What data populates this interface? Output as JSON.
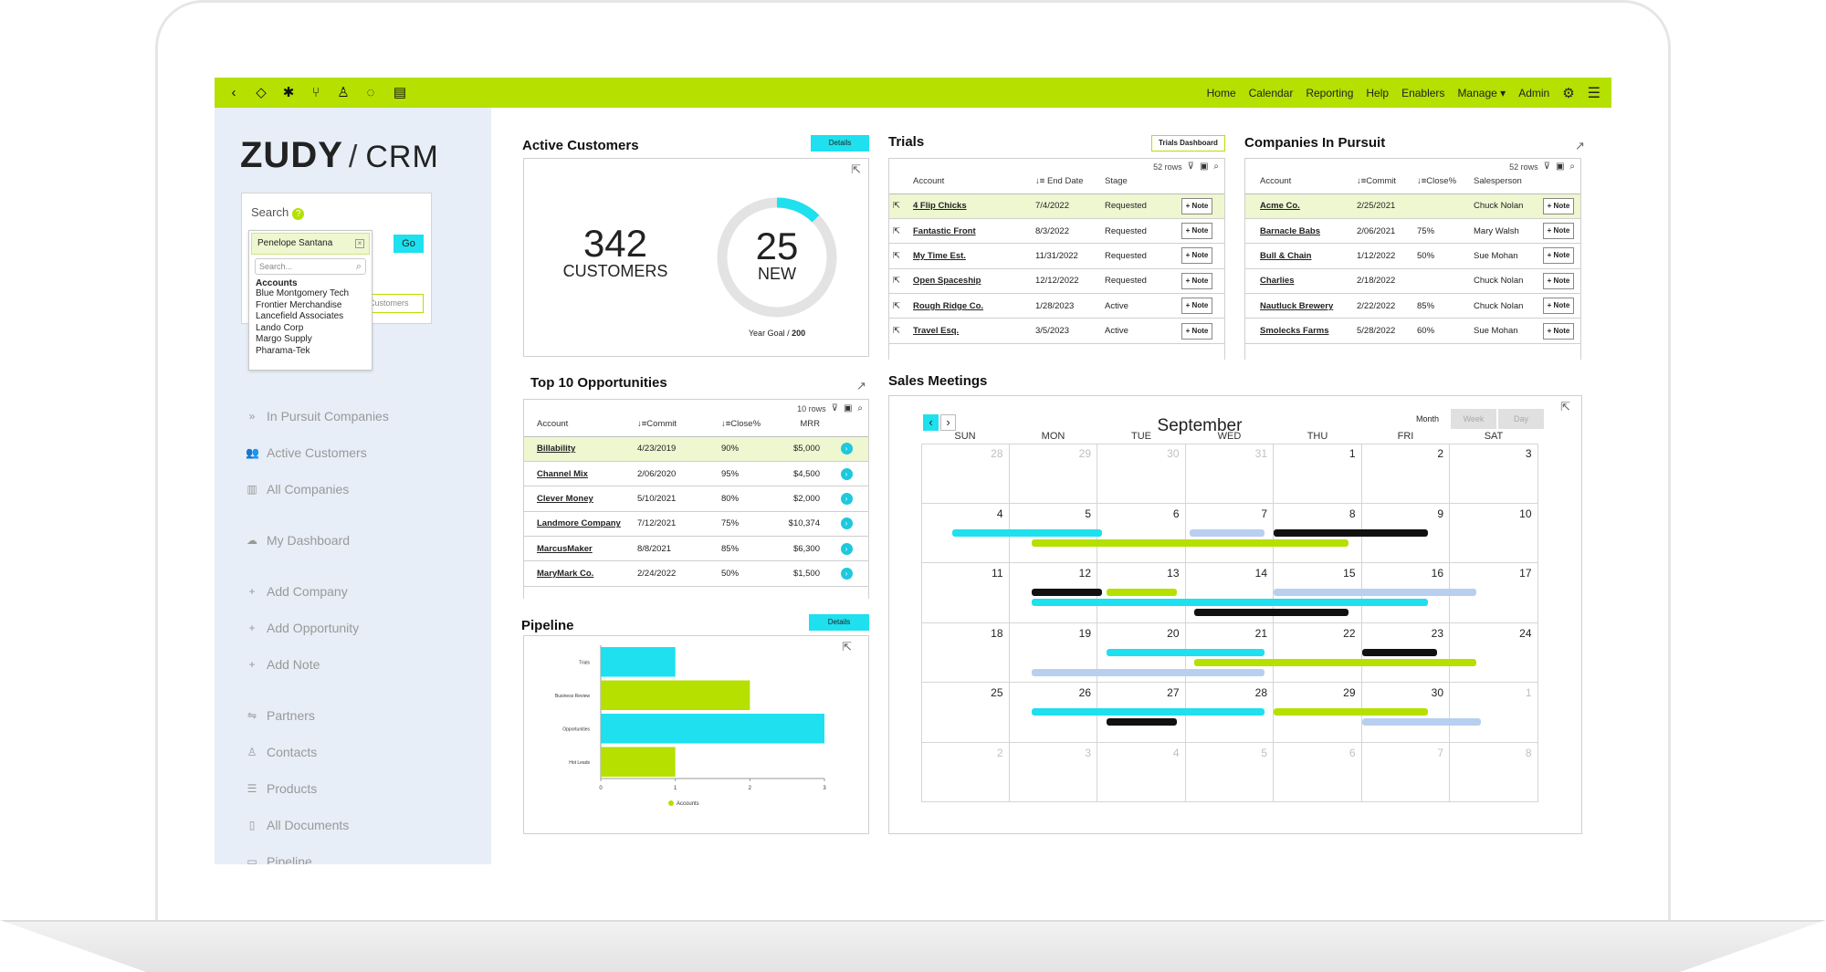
{
  "nav": {
    "items": [
      "Home",
      "Calendar",
      "Reporting",
      "Help",
      "Enablers",
      "Manage",
      "Admin"
    ],
    "left_icons": [
      "back-icon",
      "shield-icon",
      "bug-icon",
      "branch-icon",
      "user-icon",
      "spinner-icon",
      "flag-icon"
    ]
  },
  "logo": {
    "brand": "ZUDY",
    "product": "CRM"
  },
  "search": {
    "label": "Search",
    "go": "Go",
    "customers_placeholder": "Customers",
    "selected": "Penelope Santana",
    "dropdown_placeholder": "Search...",
    "group": "Accounts",
    "results": [
      "Blue Montgomery Tech",
      "Frontier Merchandise",
      "Lancefield Associates",
      "Lando Corp",
      "Margo Supply",
      "Pharama-Tek"
    ]
  },
  "sidebar": {
    "items": [
      {
        "label": "In Pursuit Companies",
        "icon": "double-chevron-icon"
      },
      {
        "label": "Active Customers",
        "icon": "users-icon"
      },
      {
        "label": "All Companies",
        "icon": "building-icon"
      },
      {
        "label": "My Dashboard",
        "icon": "dashboard-icon"
      },
      {
        "label": "Add Company",
        "icon": "plus-icon"
      },
      {
        "label": "Add Opportunity",
        "icon": "plus-icon"
      },
      {
        "label": "Add Note",
        "icon": "plus-icon"
      },
      {
        "label": "Partners",
        "icon": "handshake-icon"
      },
      {
        "label": "Contacts",
        "icon": "contact-icon"
      },
      {
        "label": "Products",
        "icon": "list-icon"
      },
      {
        "label": "All Documents",
        "icon": "document-icon"
      },
      {
        "label": "Pipeline",
        "icon": "pipeline-icon"
      }
    ]
  },
  "active_customers": {
    "title": "Active Customers",
    "details": "Details",
    "count": "342",
    "count_label": "CUSTOMERS",
    "new": "25",
    "new_label": "NEW",
    "goal_label": "Year Goal /",
    "goal_value": "200",
    "progress": 0.125
  },
  "trials": {
    "title": "Trials",
    "dashboard_btn": "Trials Dashboard",
    "rows_info": "52 rows",
    "columns": [
      "Account",
      "End Date",
      "Stage"
    ],
    "note": "+ Note",
    "rows": [
      [
        "4 Flip Chicks",
        "7/4/2022",
        "Requested"
      ],
      [
        "Fantastic Front",
        "8/3/2022",
        "Requested"
      ],
      [
        "My Time Est.",
        "11/31/2022",
        "Requested"
      ],
      [
        "Open Spaceship",
        "12/12/2022",
        "Requested"
      ],
      [
        "Rough Ridge Co.",
        "1/28/2023",
        "Active"
      ],
      [
        "Travel Esq.",
        "3/5/2023",
        "Active"
      ]
    ]
  },
  "pursuit": {
    "title": "Companies In Pursuit",
    "rows_info": "52 rows",
    "columns": [
      "Account",
      "Commit",
      "Close%",
      "Salesperson"
    ],
    "note": "+ Note",
    "rows": [
      [
        "Acme Co.",
        "2/25/2021",
        "",
        "Chuck Nolan"
      ],
      [
        "Barnacle Babs",
        "2/06/2021",
        "75%",
        "Mary Walsh"
      ],
      [
        "Bull & Chain",
        "1/12/2022",
        "50%",
        "Sue Mohan"
      ],
      [
        "Charlies",
        "2/18/2022",
        "",
        "Chuck Nolan"
      ],
      [
        "Nautluck Brewery",
        "2/22/2022",
        "85%",
        "Chuck Nolan"
      ],
      [
        "Smolecks Farms",
        "5/28/2022",
        "60%",
        "Sue Mohan"
      ]
    ]
  },
  "top10": {
    "title": "Top 10 Opportunities",
    "rows_info": "10 rows",
    "columns": [
      "Account",
      "Commit",
      "Close%",
      "MRR"
    ],
    "rows": [
      [
        "Billability",
        "4/23/2019",
        "90%",
        "$5,000"
      ],
      [
        "Channel Mix",
        "2/06/2020",
        "95%",
        "$4,500"
      ],
      [
        "Clever Money",
        "5/10/2021",
        "80%",
        "$2,000"
      ],
      [
        "Landmore Company",
        "7/12/2021",
        "75%",
        "$10,374"
      ],
      [
        "MarcusMaker",
        "8/8/2021",
        "85%",
        "$6,300"
      ],
      [
        "MaryMark Co.",
        "2/24/2022",
        "50%",
        "$1,500"
      ]
    ]
  },
  "pipeline": {
    "title": "Pipeline",
    "details": "Details",
    "legend": "Accounts",
    "colors": {
      "cyan": "#1ee0ee",
      "green": "#b5e000"
    }
  },
  "chart_data": {
    "type": "bar",
    "orientation": "horizontal",
    "categories": [
      "Trials",
      "Business Review",
      "Opportunities",
      "Hot Leads"
    ],
    "values": [
      1,
      2,
      3,
      1
    ],
    "xlim": [
      0,
      3
    ],
    "xticks": [
      "0",
      "1",
      "2",
      "3"
    ],
    "series": [
      {
        "name": "Accounts",
        "values": [
          1,
          2,
          3,
          1
        ]
      }
    ]
  },
  "calendar": {
    "title": "Sales Meetings",
    "month": "September",
    "views": [
      "Month",
      "Week",
      "Day"
    ],
    "days": [
      "SUN",
      "MON",
      "TUE",
      "WED",
      "THU",
      "FRI",
      "SAT"
    ],
    "weeks": [
      [
        [
          "28",
          1
        ],
        [
          "29",
          1
        ],
        [
          "30",
          1
        ],
        [
          "31",
          1
        ],
        [
          "1",
          0
        ],
        [
          "2",
          0
        ],
        [
          "3",
          0
        ]
      ],
      [
        [
          "4",
          0
        ],
        [
          "5",
          0
        ],
        [
          "6",
          0
        ],
        [
          "7",
          0
        ],
        [
          "8",
          0
        ],
        [
          "9",
          0
        ],
        [
          "10",
          0
        ]
      ],
      [
        [
          "11",
          0
        ],
        [
          "12",
          0
        ],
        [
          "13",
          0
        ],
        [
          "14",
          0
        ],
        [
          "15",
          0
        ],
        [
          "16",
          0
        ],
        [
          "17",
          0
        ]
      ],
      [
        [
          "18",
          0
        ],
        [
          "19",
          0
        ],
        [
          "20",
          0
        ],
        [
          "21",
          0
        ],
        [
          "22",
          0
        ],
        [
          "23",
          0
        ],
        [
          "24",
          0
        ]
      ],
      [
        [
          "25",
          0
        ],
        [
          "26",
          0
        ],
        [
          "27",
          0
        ],
        [
          "28",
          0
        ],
        [
          "29",
          0
        ],
        [
          "30",
          0
        ],
        [
          "1",
          1
        ]
      ],
      [
        [
          "2",
          1
        ],
        [
          "3",
          1
        ],
        [
          "4",
          1
        ],
        [
          "5",
          1
        ],
        [
          "6",
          1
        ],
        [
          "7",
          1
        ],
        [
          "8",
          1
        ]
      ]
    ]
  }
}
